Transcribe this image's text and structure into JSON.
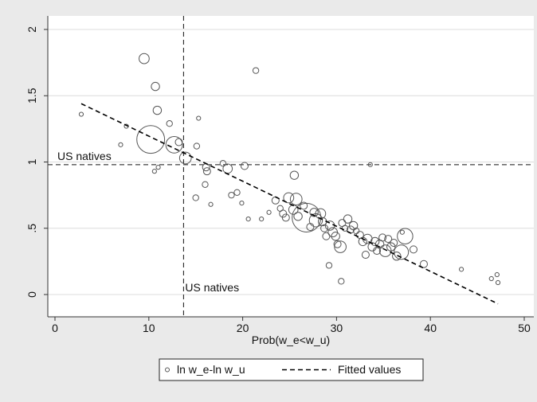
{
  "chart_data": {
    "type": "scatter",
    "xlabel": "Prob(w_e<w_u)",
    "ylabel": "",
    "xlim": [
      0,
      50
    ],
    "ylim": [
      0,
      2
    ],
    "x_ticks": [
      0,
      10,
      20,
      30,
      40,
      50
    ],
    "y_ticks": [
      0,
      0.5,
      1,
      1.5,
      2
    ],
    "x_tick_labels": [
      "0",
      "10",
      "20",
      "30",
      "40",
      "50"
    ],
    "y_tick_labels": [
      "0",
      ".5",
      "1",
      "1.5",
      "2"
    ],
    "grid": "horizontal",
    "legend_position": "bottom",
    "series": [
      {
        "name": "ln w_e-ln w_u",
        "kind": "scatter",
        "marker": "hollow-circle",
        "color": "#555555",
        "points": [
          {
            "x": 2.8,
            "y": 1.36,
            "w": 1
          },
          {
            "x": 7.0,
            "y": 1.13,
            "w": 1
          },
          {
            "x": 7.6,
            "y": 1.27,
            "w": 1
          },
          {
            "x": 9.5,
            "y": 1.78,
            "w": 6
          },
          {
            "x": 10.7,
            "y": 1.57,
            "w": 4
          },
          {
            "x": 10.9,
            "y": 1.39,
            "w": 4
          },
          {
            "x": 10.6,
            "y": 0.93,
            "w": 1
          },
          {
            "x": 11.0,
            "y": 0.96,
            "w": 1
          },
          {
            "x": 10.2,
            "y": 1.17,
            "w": 45
          },
          {
            "x": 12.2,
            "y": 1.29,
            "w": 2
          },
          {
            "x": 12.7,
            "y": 1.13,
            "w": 16
          },
          {
            "x": 13.2,
            "y": 1.15,
            "w": 3
          },
          {
            "x": 13.9,
            "y": 1.03,
            "w": 8
          },
          {
            "x": 15.1,
            "y": 1.12,
            "w": 2
          },
          {
            "x": 15.3,
            "y": 1.33,
            "w": 1
          },
          {
            "x": 15.0,
            "y": 0.73,
            "w": 2
          },
          {
            "x": 16.1,
            "y": 0.96,
            "w": 3
          },
          {
            "x": 16.2,
            "y": 0.93,
            "w": 3
          },
          {
            "x": 16.0,
            "y": 0.83,
            "w": 2
          },
          {
            "x": 16.6,
            "y": 0.68,
            "w": 1
          },
          {
            "x": 17.9,
            "y": 0.99,
            "w": 2
          },
          {
            "x": 18.4,
            "y": 0.95,
            "w": 5
          },
          {
            "x": 18.8,
            "y": 0.75,
            "w": 2
          },
          {
            "x": 19.4,
            "y": 0.77,
            "w": 2
          },
          {
            "x": 19.9,
            "y": 0.69,
            "w": 1
          },
          {
            "x": 20.2,
            "y": 0.97,
            "w": 3
          },
          {
            "x": 20.6,
            "y": 0.57,
            "w": 1
          },
          {
            "x": 21.4,
            "y": 1.69,
            "w": 2
          },
          {
            "x": 22.0,
            "y": 0.57,
            "w": 1
          },
          {
            "x": 22.8,
            "y": 0.62,
            "w": 1
          },
          {
            "x": 23.5,
            "y": 0.71,
            "w": 3
          },
          {
            "x": 24.0,
            "y": 0.65,
            "w": 2
          },
          {
            "x": 24.3,
            "y": 0.61,
            "w": 3
          },
          {
            "x": 24.6,
            "y": 0.58,
            "w": 3
          },
          {
            "x": 24.9,
            "y": 0.73,
            "w": 6
          },
          {
            "x": 25.4,
            "y": 0.64,
            "w": 5
          },
          {
            "x": 25.5,
            "y": 0.9,
            "w": 4
          },
          {
            "x": 25.7,
            "y": 0.72,
            "w": 8
          },
          {
            "x": 25.9,
            "y": 0.59,
            "w": 4
          },
          {
            "x": 26.5,
            "y": 0.67,
            "w": 3
          },
          {
            "x": 26.8,
            "y": 0.58,
            "w": 48
          },
          {
            "x": 27.2,
            "y": 0.51,
            "w": 3
          },
          {
            "x": 27.6,
            "y": 0.62,
            "w": 4
          },
          {
            "x": 27.8,
            "y": 0.56,
            "w": 10
          },
          {
            "x": 28.3,
            "y": 0.61,
            "w": 6
          },
          {
            "x": 28.5,
            "y": 0.55,
            "w": 4
          },
          {
            "x": 28.7,
            "y": 0.5,
            "w": 3
          },
          {
            "x": 28.9,
            "y": 0.44,
            "w": 3
          },
          {
            "x": 29.2,
            "y": 0.22,
            "w": 2
          },
          {
            "x": 29.3,
            "y": 0.52,
            "w": 5
          },
          {
            "x": 29.6,
            "y": 0.47,
            "w": 5
          },
          {
            "x": 29.9,
            "y": 0.44,
            "w": 4
          },
          {
            "x": 30.1,
            "y": 0.38,
            "w": 3
          },
          {
            "x": 30.4,
            "y": 0.36,
            "w": 8
          },
          {
            "x": 30.6,
            "y": 0.54,
            "w": 3
          },
          {
            "x": 30.5,
            "y": 0.1,
            "w": 2
          },
          {
            "x": 30.9,
            "y": 0.5,
            "w": 2
          },
          {
            "x": 31.2,
            "y": 0.57,
            "w": 4
          },
          {
            "x": 31.5,
            "y": 0.49,
            "w": 3
          },
          {
            "x": 31.8,
            "y": 0.52,
            "w": 4
          },
          {
            "x": 32.1,
            "y": 0.48,
            "w": 2
          },
          {
            "x": 32.5,
            "y": 0.45,
            "w": 3
          },
          {
            "x": 32.8,
            "y": 0.4,
            "w": 4
          },
          {
            "x": 33.1,
            "y": 0.3,
            "w": 3
          },
          {
            "x": 33.3,
            "y": 0.42,
            "w": 5
          },
          {
            "x": 33.6,
            "y": 0.98,
            "w": 1
          },
          {
            "x": 33.8,
            "y": 0.36,
            "w": 4
          },
          {
            "x": 34.1,
            "y": 0.4,
            "w": 4
          },
          {
            "x": 34.3,
            "y": 0.33,
            "w": 3
          },
          {
            "x": 34.6,
            "y": 0.38,
            "w": 4
          },
          {
            "x": 34.9,
            "y": 0.43,
            "w": 3
          },
          {
            "x": 35.2,
            "y": 0.33,
            "w": 8
          },
          {
            "x": 35.5,
            "y": 0.42,
            "w": 3
          },
          {
            "x": 35.8,
            "y": 0.36,
            "w": 4
          },
          {
            "x": 36.1,
            "y": 0.39,
            "w": 3
          },
          {
            "x": 36.4,
            "y": 0.29,
            "w": 4
          },
          {
            "x": 36.9,
            "y": 0.32,
            "w": 12
          },
          {
            "x": 37.3,
            "y": 0.44,
            "w": 14
          },
          {
            "x": 37.0,
            "y": 0.47,
            "w": 1
          },
          {
            "x": 38.2,
            "y": 0.34,
            "w": 3
          },
          {
            "x": 39.3,
            "y": 0.23,
            "w": 3
          },
          {
            "x": 43.3,
            "y": 0.19,
            "w": 1
          },
          {
            "x": 46.5,
            "y": 0.12,
            "w": 1
          },
          {
            "x": 47.1,
            "y": 0.15,
            "w": 1
          },
          {
            "x": 47.2,
            "y": 0.09,
            "w": 1
          }
        ]
      },
      {
        "name": "Fitted values",
        "kind": "line",
        "style": "dashed",
        "color": "#000000",
        "x": [
          2.8,
          47.2
        ],
        "y": [
          1.44,
          -0.07
        ]
      }
    ],
    "reference_lines": [
      {
        "orientation": "vertical",
        "value": 13.7,
        "label": "US natives"
      },
      {
        "orientation": "horizontal",
        "value": 0.98,
        "label": "US natives"
      }
    ]
  }
}
